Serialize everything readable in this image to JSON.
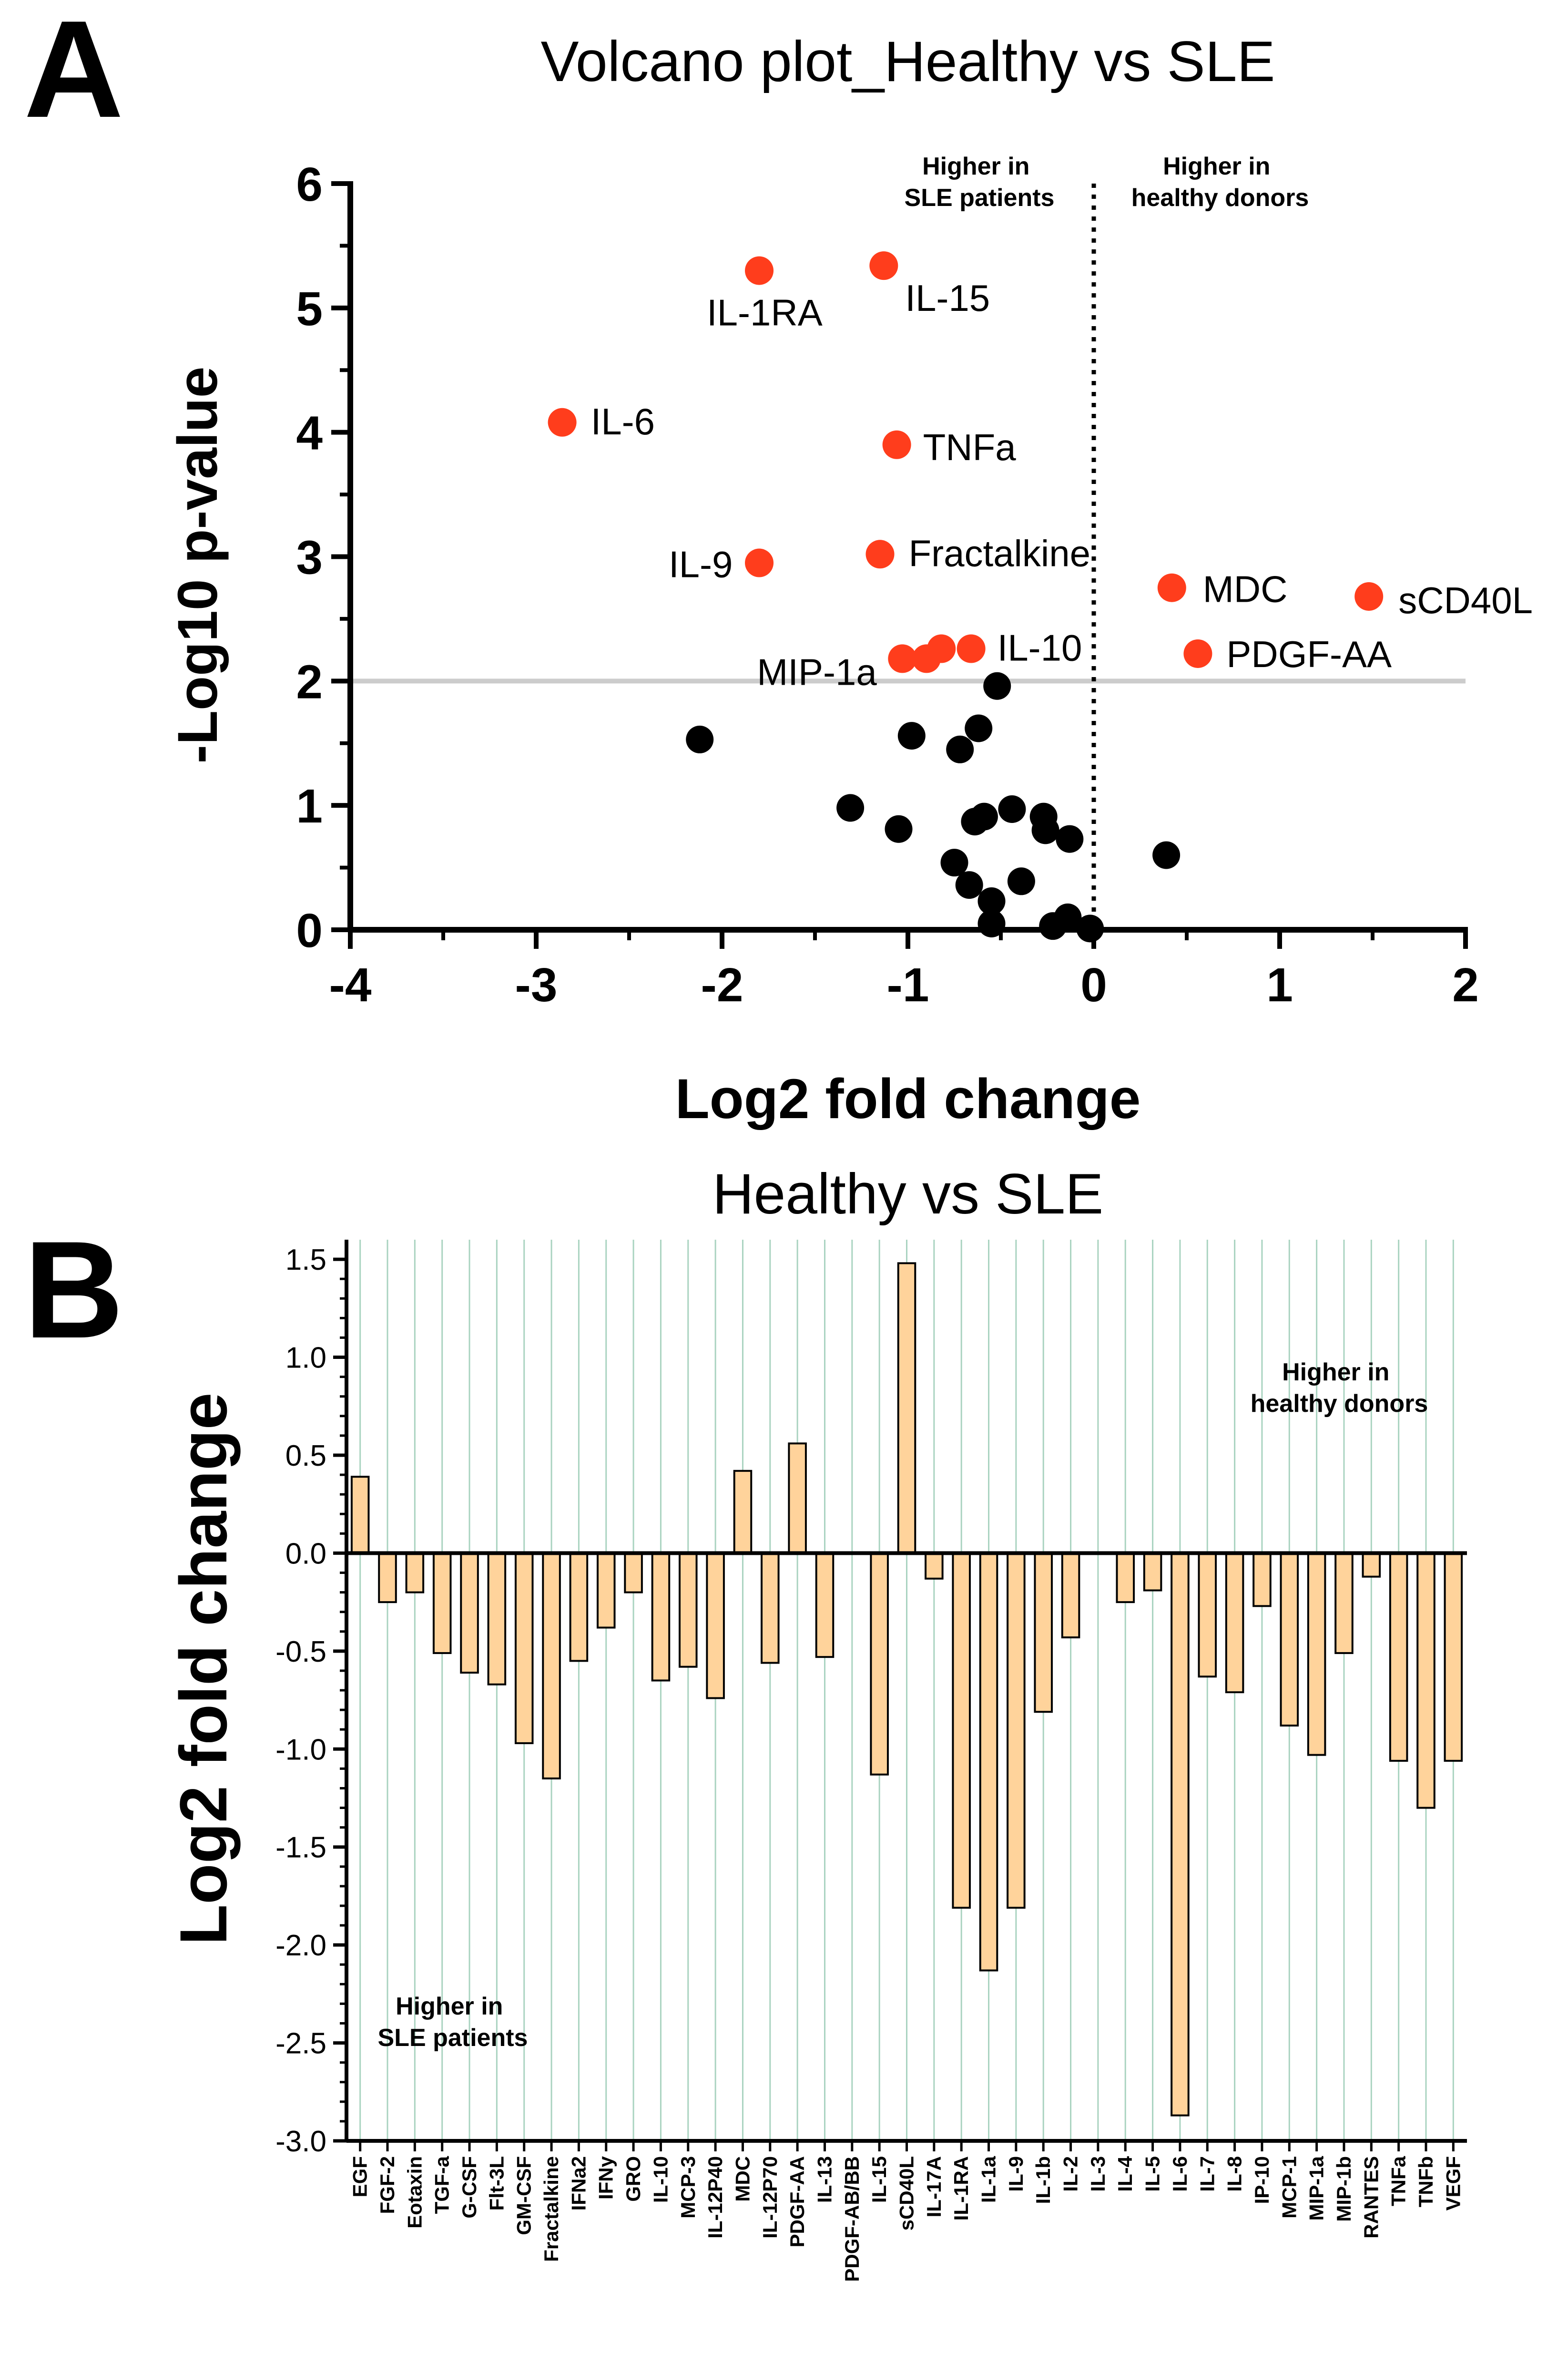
{
  "panels": {
    "a_letter": "A",
    "b_letter": "B"
  },
  "colors": {
    "significant": "#ff3d1c",
    "nonsignificant": "#000000",
    "bar_fill": "#ffd39b",
    "bar_stroke": "#000000",
    "threshold_line": "#cccccc",
    "grid_line": "#a9d3c0"
  },
  "chart_data": [
    {
      "type": "scatter",
      "title": "Volcano plot_Healthy vs SLE",
      "xlabel": "Log2 fold change",
      "ylabel": "-Log10 p-value",
      "xlim": [
        -4,
        2
      ],
      "ylim": [
        0,
        6
      ],
      "xticks": [
        -4,
        -3,
        -2,
        -1,
        0,
        1,
        2
      ],
      "yticks": [
        0,
        1,
        2,
        3,
        4,
        5,
        6
      ],
      "threshold_y": 2,
      "vertical_line_x": 0,
      "annotations": [
        "Higher in\nSLE patients",
        "Higher in\nhealthy donors"
      ],
      "significant_points": [
        {
          "label": "IL-1RA",
          "x": -1.8,
          "y": 5.3
        },
        {
          "label": "IL-15",
          "x": -1.13,
          "y": 5.34
        },
        {
          "label": "IL-6",
          "x": -2.86,
          "y": 4.08
        },
        {
          "label": "TNFa",
          "x": -1.06,
          "y": 3.9
        },
        {
          "label": "IL-9",
          "x": -1.8,
          "y": 2.95
        },
        {
          "label": "Fractalkine",
          "x": -1.15,
          "y": 3.02
        },
        {
          "label": "MDC",
          "x": 0.42,
          "y": 2.75
        },
        {
          "label": "sCD40L",
          "x": 1.48,
          "y": 2.68
        },
        {
          "label": "MIP-1a",
          "x": -1.03,
          "y": 2.18
        },
        {
          "label": "",
          "x": -0.9,
          "y": 2.18
        },
        {
          "label": "",
          "x": -0.82,
          "y": 2.26
        },
        {
          "label": "IL-10",
          "x": -0.66,
          "y": 2.26
        },
        {
          "label": "PDGF-AA",
          "x": 0.56,
          "y": 2.22
        }
      ],
      "nonsignificant_points": [
        {
          "x": -2.12,
          "y": 1.53
        },
        {
          "x": -0.52,
          "y": 1.96
        },
        {
          "x": -0.98,
          "y": 1.56
        },
        {
          "x": -0.62,
          "y": 1.62
        },
        {
          "x": -0.72,
          "y": 1.45
        },
        {
          "x": -1.31,
          "y": 0.98
        },
        {
          "x": -1.05,
          "y": 0.81
        },
        {
          "x": -0.59,
          "y": 0.91
        },
        {
          "x": -0.64,
          "y": 0.87
        },
        {
          "x": -0.44,
          "y": 0.97
        },
        {
          "x": -0.27,
          "y": 0.91
        },
        {
          "x": -0.26,
          "y": 0.8
        },
        {
          "x": -0.13,
          "y": 0.73
        },
        {
          "x": 0.39,
          "y": 0.6
        },
        {
          "x": -0.75,
          "y": 0.54
        },
        {
          "x": -0.67,
          "y": 0.36
        },
        {
          "x": -0.39,
          "y": 0.39
        },
        {
          "x": -0.55,
          "y": 0.23
        },
        {
          "x": -0.55,
          "y": 0.05
        },
        {
          "x": -0.14,
          "y": 0.1
        },
        {
          "x": -0.22,
          "y": 0.03
        },
        {
          "x": -0.02,
          "y": 0.01
        }
      ]
    },
    {
      "type": "bar",
      "title": "Healthy vs SLE",
      "xlabel": "",
      "ylabel": "Log2 fold change",
      "ylim": [
        -3.0,
        1.6
      ],
      "yticks": [
        1.5,
        1.0,
        0.5,
        0.0,
        -0.5,
        -1.0,
        -1.5,
        -2.0,
        -2.5,
        -3.0
      ],
      "ytick_labels": [
        "1.5",
        "1.0",
        "0.5",
        "0.0",
        "-0.5",
        "-1.0",
        "-1.5",
        "-2.0",
        "-2.5",
        "-3.0"
      ],
      "annotations": [
        "Higher in\nhealthy donors",
        "Higher in\nSLE patients"
      ],
      "categories": [
        "EGF",
        "FGF-2",
        "Eotaxin",
        "TGF-a",
        "G-CSF",
        "Flt-3L",
        "GM-CSF",
        "Fractalkine",
        "IFNa2",
        "IFNy",
        "GRO",
        "IL-10",
        "MCP-3",
        "IL-12P40",
        "MDC",
        "IL-12P70",
        "PDGF-AA",
        "IL-13",
        "PDGF-AB/BB",
        "IL-15",
        "sCD40L",
        "IL-17A",
        "IL-1RA",
        "IL-1a",
        "IL-9",
        "IL-1b",
        "IL-2",
        "IL-3",
        "IL-4",
        "IL-5",
        "IL-6",
        "IL-7",
        "IL-8",
        "IP-10",
        "MCP-1",
        "MIP-1a",
        "MIP-1b",
        "RANTES",
        "TNFa",
        "TNFb",
        "VEGF"
      ],
      "values": [
        0.39,
        -0.25,
        -0.2,
        -0.51,
        -0.61,
        -0.67,
        -0.97,
        -1.15,
        -0.55,
        -0.38,
        -0.2,
        -0.65,
        -0.58,
        -0.74,
        0.42,
        -0.56,
        0.56,
        -0.53,
        0.0,
        -1.13,
        1.48,
        -0.13,
        -1.81,
        -2.13,
        -1.81,
        -0.81,
        -0.43,
        0.0,
        -0.25,
        -0.19,
        -2.87,
        -0.63,
        -0.71,
        -0.27,
        -0.88,
        -1.03,
        -0.51,
        -0.12,
        -1.06,
        -1.3,
        -1.06
      ]
    }
  ]
}
